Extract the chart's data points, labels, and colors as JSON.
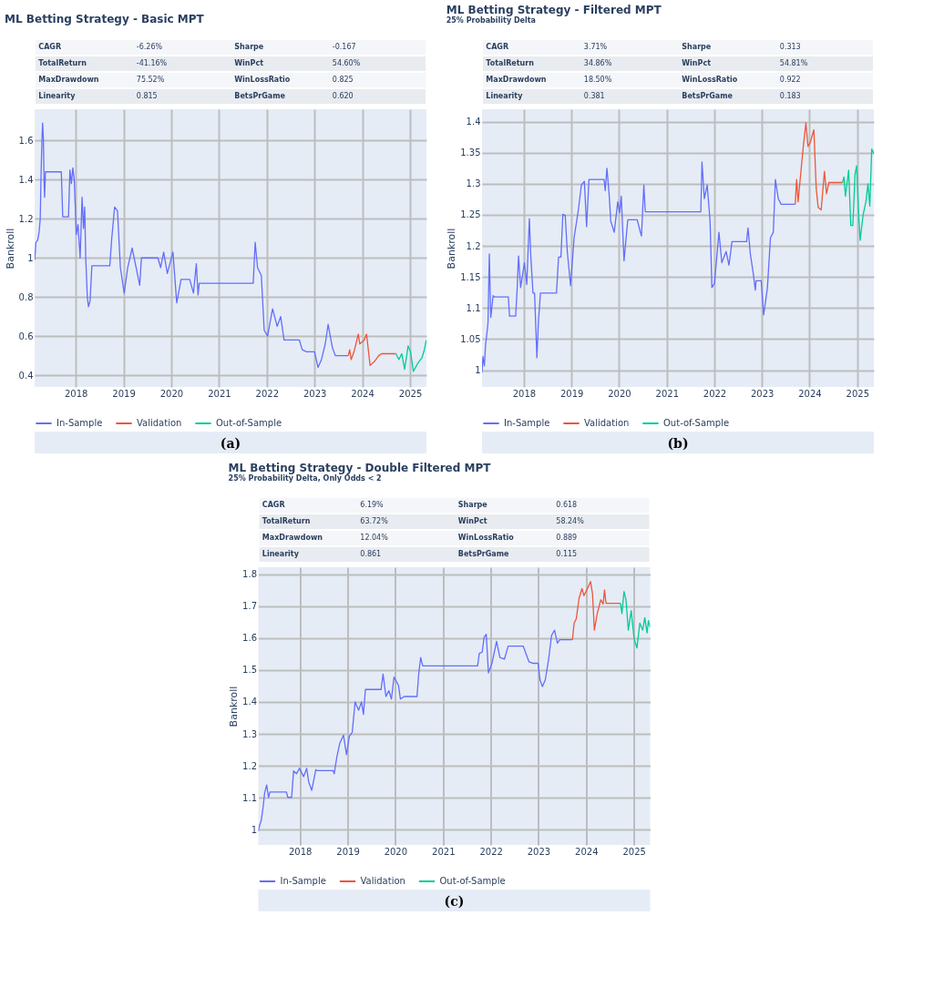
{
  "chart_data": [
    {
      "type": "line",
      "title": "ML Betting Strategy - Basic MPT",
      "ylabel": "Bankroll",
      "annotations": [
        "CAGR",
        "-6.26%",
        "Sharpe",
        "-0.167",
        "TotalReturn",
        "-41.16%",
        "WinPct",
        "54.60%",
        "MaxDrawdown",
        "75.52%",
        "WinLossRatio",
        "0.825",
        "Linearity",
        "0.815",
        "BetsPrGame",
        "0.620",
        "(a)"
      ],
      "xlim": [
        "2017-02-20",
        "2025-05-06"
      ],
      "xticks": [
        "2018",
        "2019",
        "2020",
        "2021",
        "2022",
        "2023",
        "2024",
        "2025"
      ],
      "ylim": [
        0.34,
        1.76
      ],
      "yticks": [
        0.4,
        0.6,
        0.8,
        1,
        1.2,
        1.4,
        1.6
      ],
      "grid": true,
      "legend": "bottom",
      "series": [
        {
          "name": "In-Sample",
          "color": "#636efa",
          "x": [
            "2017-02-21",
            "2017-03-02",
            "2017-03-15",
            "2017-03-26",
            "2017-04-04",
            "2017-04-10",
            "2017-04-17",
            "2017-04-22",
            "2017-04-28",
            "2017-05-03",
            "2017-05-07",
            "2017-05-14",
            "2017-05-25",
            "2017-09-12",
            "2017-09-23",
            "2017-11-06",
            "2017-11-17",
            "2017-11-28",
            "2017-12-09",
            "2017-12-20",
            "2018-01-05",
            "2018-01-18",
            "2018-02-03",
            "2018-02-18",
            "2018-03-01",
            "2018-03-10",
            "2018-03-18",
            "2018-03-30",
            "2018-04-08",
            "2018-04-20",
            "2018-05-04",
            "2018-09-18",
            "2018-10-03",
            "2018-10-25",
            "2018-11-16",
            "2018-12-08",
            "2019-01-06",
            "2019-02-02",
            "2019-03-08",
            "2019-05-05",
            "2019-05-18",
            "2019-09-21",
            "2019-10-12",
            "2019-11-04",
            "2019-12-02",
            "2020-01-14",
            "2020-02-12",
            "2020-03-16",
            "2020-05-21",
            "2020-06-19",
            "2020-07-11",
            "2020-07-24",
            "2020-08-02",
            "2021-09-19",
            "2021-10-04",
            "2021-10-22",
            "2021-11-20",
            "2021-12-12",
            "2022-01-07",
            "2022-02-14",
            "2022-03-21",
            "2022-04-17",
            "2022-05-13",
            "2022-09-07",
            "2022-09-29",
            "2022-11-01",
            "2023-01-01",
            "2023-01-28",
            "2023-02-23",
            "2023-03-24",
            "2023-04-15",
            "2023-05-18",
            "2023-06-09",
            "2023-09-16"
          ],
          "values": [
            0.99,
            1.08,
            1.09,
            1.13,
            1.2,
            1.42,
            1.6,
            1.69,
            1.61,
            1.4,
            1.31,
            1.44,
            1.44,
            1.44,
            1.21,
            1.21,
            1.45,
            1.38,
            1.46,
            1.4,
            1.12,
            1.17,
            1.0,
            1.31,
            1.15,
            1.26,
            1.0,
            0.8,
            0.75,
            0.78,
            0.96,
            0.96,
            1.1,
            1.26,
            1.24,
            0.95,
            0.82,
            0.95,
            1.05,
            0.86,
            1.0,
            1.0,
            0.95,
            1.03,
            0.92,
            1.03,
            0.77,
            0.89,
            0.89,
            0.82,
            0.97,
            0.81,
            0.87,
            0.87,
            1.08,
            0.95,
            0.91,
            0.63,
            0.6,
            0.74,
            0.65,
            0.7,
            0.58,
            0.58,
            0.53,
            0.52,
            0.52,
            0.44,
            0.48,
            0.56,
            0.66,
            0.54,
            0.5,
            0.5
          ]
        },
        {
          "name": "Validation",
          "color": "#ef553b",
          "x": [
            "2023-09-16",
            "2023-09-27",
            "2023-10-08",
            "2023-10-30",
            "2023-12-02",
            "2023-12-13",
            "2024-01-16",
            "2024-02-03",
            "2024-03-01",
            "2024-04-03",
            "2024-05-06",
            "2024-05-28",
            "2024-09-15"
          ],
          "values": [
            0.5,
            0.53,
            0.48,
            0.52,
            0.61,
            0.56,
            0.58,
            0.61,
            0.45,
            0.47,
            0.5,
            0.51,
            0.51
          ]
        },
        {
          "name": "Out-of-Sample",
          "color": "#00cc96",
          "x": [
            "2024-09-15",
            "2024-10-07",
            "2024-10-29",
            "2024-11-20",
            "2024-12-17",
            "2025-01-04",
            "2025-01-26",
            "2025-02-28",
            "2025-04-02",
            "2025-04-20",
            "2025-05-05"
          ],
          "values": [
            0.51,
            0.48,
            0.51,
            0.43,
            0.55,
            0.52,
            0.42,
            0.46,
            0.49,
            0.53,
            0.58
          ]
        }
      ]
    },
    {
      "type": "line",
      "title": "ML Betting Strategy - Filtered MPT",
      "subtitle": "25% Probability Delta",
      "ylabel": "Bankroll",
      "annotations": [
        "CAGR",
        "3.71%",
        "Sharpe",
        "0.313",
        "TotalReturn",
        "34.86%",
        "WinPct",
        "54.81%",
        "MaxDrawdown",
        "18.50%",
        "WinLossRatio",
        "0.922",
        "Linearity",
        "0.381",
        "BetsPrGame",
        "0.183",
        "(b)"
      ],
      "xlim": [
        "2017-02-14",
        "2025-05-08"
      ],
      "xticks": [
        "2018",
        "2019",
        "2020",
        "2021",
        "2022",
        "2023",
        "2024",
        "2025"
      ],
      "ylim": [
        0.973,
        1.42
      ],
      "yticks": [
        1,
        1.05,
        1.1,
        1.15,
        1.2,
        1.25,
        1.3,
        1.35,
        1.4
      ],
      "grid": true,
      "legend": "bottom",
      "series": [
        {
          "name": "In-Sample",
          "color": "#636efa",
          "x": [
            "2017-02-14",
            "2017-02-21",
            "2017-03-04",
            "2017-03-13",
            "2017-04-01",
            "2017-04-11",
            "2017-04-22",
            "2017-05-10",
            "2017-05-19",
            "2017-09-04",
            "2017-09-13",
            "2017-10-30",
            "2017-11-10",
            "2017-11-21",
            "2017-12-07",
            "2018-01-05",
            "2018-01-23",
            "2018-02-12",
            "2018-02-23",
            "2018-03-12",
            "2018-03-24",
            "2018-04-11",
            "2018-04-22",
            "2018-05-08",
            "2018-09-08",
            "2018-09-24",
            "2018-10-12",
            "2018-10-27",
            "2018-11-14",
            "2018-11-30",
            "2018-12-25",
            "2019-01-21",
            "2019-02-23",
            "2019-03-18",
            "2019-04-10",
            "2019-04-27",
            "2019-05-15",
            "2019-09-08",
            "2019-09-17",
            "2019-09-30",
            "2019-10-18",
            "2019-10-29",
            "2019-11-25",
            "2019-12-22",
            "2020-01-05",
            "2020-01-18",
            "2020-02-08",
            "2020-03-08",
            "2020-05-19",
            "2020-06-10",
            "2020-06-21",
            "2020-07-09",
            "2020-07-20",
            "2021-09-19",
            "2021-09-28",
            "2021-10-16",
            "2021-11-07",
            "2021-11-29",
            "2021-12-13",
            "2022-01-02",
            "2022-02-05",
            "2022-02-27",
            "2022-04-01",
            "2022-04-23",
            "2022-05-16",
            "2022-09-05",
            "2022-09-16",
            "2022-10-04",
            "2022-10-26",
            "2022-11-11",
            "2022-11-17",
            "2022-12-26",
            "2023-01-14",
            "2023-02-12",
            "2023-03-07",
            "2023-03-29",
            "2023-04-14",
            "2023-05-06",
            "2023-05-28",
            "2023-09-13"
          ],
          "values": [
            0.996,
            1.022,
            1.007,
            1.04,
            1.076,
            1.187,
            1.085,
            1.12,
            1.118,
            1.118,
            1.087,
            1.087,
            1.129,
            1.184,
            1.133,
            1.173,
            1.138,
            1.244,
            1.184,
            1.124,
            1.124,
            1.02,
            1.076,
            1.124,
            1.124,
            1.182,
            1.182,
            1.251,
            1.249,
            1.191,
            1.136,
            1.213,
            1.258,
            1.298,
            1.304,
            1.231,
            1.307,
            1.307,
            1.289,
            1.325,
            1.28,
            1.24,
            1.222,
            1.271,
            1.253,
            1.28,
            1.176,
            1.242,
            1.242,
            1.224,
            1.216,
            1.298,
            1.255,
            1.255,
            1.335,
            1.276,
            1.298,
            1.24,
            1.133,
            1.14,
            1.222,
            1.173,
            1.191,
            1.169,
            1.207,
            1.207,
            1.229,
            1.187,
            1.156,
            1.129,
            1.144,
            1.144,
            1.089,
            1.133,
            1.213,
            1.222,
            1.307,
            1.276,
            1.267,
            1.267
          ]
        },
        {
          "name": "Validation",
          "color": "#ef553b",
          "x": [
            "2023-09-13",
            "2023-09-24",
            "2023-10-05",
            "2023-10-25",
            "2023-11-16",
            "2023-12-04",
            "2023-12-20",
            "2024-01-07",
            "2024-02-03",
            "2024-02-21",
            "2024-03-07",
            "2024-03-30",
            "2024-04-24",
            "2024-05-10",
            "2024-05-28",
            "2024-09-10"
          ],
          "values": [
            1.267,
            1.307,
            1.271,
            1.316,
            1.364,
            1.398,
            1.36,
            1.367,
            1.387,
            1.293,
            1.262,
            1.258,
            1.32,
            1.284,
            1.302,
            1.302
          ]
        },
        {
          "name": "Out-of-Sample",
          "color": "#00cc96",
          "x": [
            "2024-09-10",
            "2024-09-21",
            "2024-10-02",
            "2024-10-27",
            "2024-11-12",
            "2024-11-28",
            "2024-12-15",
            "2024-12-27",
            "2025-01-12",
            "2025-01-23",
            "2025-02-14",
            "2025-03-08",
            "2025-03-24",
            "2025-04-07",
            "2025-04-22",
            "2025-05-08"
          ],
          "values": [
            1.302,
            1.311,
            1.28,
            1.322,
            1.233,
            1.233,
            1.316,
            1.329,
            1.249,
            1.209,
            1.249,
            1.271,
            1.3,
            1.264,
            1.356,
            1.349
          ]
        }
      ]
    },
    {
      "type": "line",
      "title": "ML Betting Strategy - Double Filtered MPT",
      "subtitle": "25% Probability Delta, Only Odds < 2",
      "ylabel": "Bankroll",
      "annotations": [
        "CAGR",
        "6.19%",
        "Sharpe",
        "0.618",
        "TotalReturn",
        "63.72%",
        "WinPct",
        "58.24%",
        "MaxDrawdown",
        "12.04%",
        "WinLossRatio",
        "0.889",
        "Linearity",
        "0.861",
        "BetsPrGame",
        "0.115",
        "(c)"
      ],
      "xlim": [
        "2017-02-16",
        "2025-05-05"
      ],
      "xticks": [
        "2018",
        "2019",
        "2020",
        "2021",
        "2022",
        "2023",
        "2024",
        "2025"
      ],
      "ylim": [
        0.952,
        1.822
      ],
      "yticks": [
        1,
        1.1,
        1.2,
        1.3,
        1.4,
        1.5,
        1.6,
        1.7,
        1.8
      ],
      "grid": true,
      "legend": "bottom",
      "series": [
        {
          "name": "In-Sample",
          "color": "#636efa",
          "x": [
            "2017-02-16",
            "2017-02-27",
            "2017-03-10",
            "2017-03-25",
            "2017-04-05",
            "2017-04-21",
            "2017-05-05",
            "2017-05-16",
            "2017-09-19",
            "2017-09-30",
            "2017-10-29",
            "2017-11-13",
            "2017-12-05",
            "2017-12-28",
            "2018-01-29",
            "2018-02-21",
            "2018-03-09",
            "2018-04-01",
            "2018-05-02",
            "2018-05-11",
            "2018-09-11",
            "2018-09-20",
            "2018-10-10",
            "2018-11-01",
            "2018-11-30",
            "2018-12-23",
            "2019-01-14",
            "2019-02-05",
            "2019-02-27",
            "2019-03-26",
            "2019-04-17",
            "2019-05-02",
            "2019-05-17",
            "2019-09-14",
            "2019-09-29",
            "2019-10-21",
            "2019-11-13",
            "2019-12-02",
            "2019-12-22",
            "2020-01-25",
            "2020-02-09",
            "2020-03-09",
            "2020-06-15",
            "2020-06-28",
            "2020-07-13",
            "2020-07-29",
            "2021-09-22",
            "2021-10-05",
            "2021-10-27",
            "2021-11-11",
            "2021-11-27",
            "2021-12-14",
            "2022-01-10",
            "2022-02-14",
            "2022-03-12",
            "2022-04-15",
            "2022-05-14",
            "2022-09-06",
            "2022-09-23",
            "2022-10-20",
            "2022-11-22",
            "2022-12-29",
            "2023-01-13",
            "2023-01-31",
            "2023-02-22",
            "2023-03-20",
            "2023-04-11",
            "2023-05-04",
            "2023-05-26",
            "2023-06-13",
            "2023-09-18"
          ],
          "values": [
            0.995,
            1.015,
            1.028,
            1.071,
            1.114,
            1.14,
            1.101,
            1.118,
            1.118,
            1.101,
            1.101,
            1.184,
            1.175,
            1.192,
            1.166,
            1.192,
            1.149,
            1.123,
            1.188,
            1.185,
            1.185,
            1.175,
            1.227,
            1.27,
            1.296,
            1.235,
            1.292,
            1.305,
            1.4,
            1.374,
            1.4,
            1.361,
            1.439,
            1.439,
            1.487,
            1.417,
            1.435,
            1.409,
            1.478,
            1.452,
            1.409,
            1.417,
            1.417,
            1.487,
            1.539,
            1.513,
            1.513,
            1.552,
            1.556,
            1.603,
            1.612,
            1.491,
            1.521,
            1.59,
            1.539,
            1.534,
            1.575,
            1.575,
            1.556,
            1.526,
            1.521,
            1.521,
            1.469,
            1.448,
            1.469,
            1.534,
            1.608,
            1.625,
            1.584,
            1.595,
            1.595
          ]
        },
        {
          "name": "Validation",
          "color": "#ef553b",
          "x": [
            "2023-09-18",
            "2023-10-01",
            "2023-10-17",
            "2023-11-08",
            "2023-11-30",
            "2023-12-15",
            "2024-01-06",
            "2024-02-04",
            "2024-02-19",
            "2024-03-04",
            "2024-03-26",
            "2024-04-22",
            "2024-05-10",
            "2024-05-21",
            "2024-06-01",
            "2024-09-20"
          ],
          "values": [
            1.595,
            1.647,
            1.66,
            1.725,
            1.755,
            1.733,
            1.751,
            1.777,
            1.738,
            1.625,
            1.677,
            1.72,
            1.707,
            1.751,
            1.709,
            1.709
          ]
        },
        {
          "name": "Out-of-Sample",
          "color": "#00cc96",
          "x": [
            "2024-09-20",
            "2024-10-01",
            "2024-10-17",
            "2024-11-01",
            "2024-11-19",
            "2024-12-11",
            "2025-01-02",
            "2025-01-24",
            "2025-02-15",
            "2025-03-09",
            "2025-03-25",
            "2025-04-11",
            "2025-04-22",
            "2025-05-05"
          ],
          "values": [
            1.709,
            1.677,
            1.746,
            1.72,
            1.625,
            1.686,
            1.599,
            1.569,
            1.647,
            1.625,
            1.664,
            1.616,
            1.655,
            1.634
          ]
        }
      ]
    }
  ]
}
